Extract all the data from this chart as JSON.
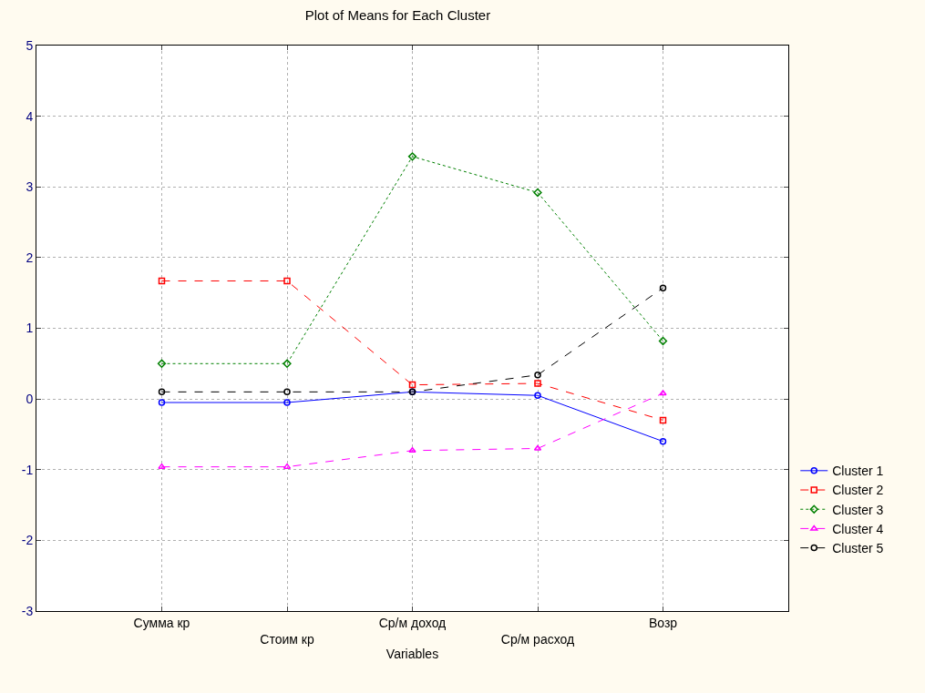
{
  "chart_data": {
    "type": "line",
    "title": "Plot of Means for Each Cluster",
    "xlabel": "Variables",
    "categories": [
      "Сумма кр",
      "Стоим кр",
      "Ср/м доход",
      "Ср/м расход",
      "Возр"
    ],
    "ylim": [
      -3,
      5
    ],
    "yticks": [
      -3,
      -2,
      -1,
      0,
      1,
      2,
      3,
      4,
      5
    ],
    "grid": true,
    "legend": "right",
    "series": [
      {
        "name": "Cluster 1",
        "color": "#0000ff",
        "marker": "circle",
        "line_style": "solid",
        "values": [
          -0.05,
          -0.05,
          0.1,
          0.05,
          -0.6
        ]
      },
      {
        "name": "Cluster 2",
        "color": "#ff0000",
        "marker": "square",
        "line_style": "dashed",
        "values": [
          1.67,
          1.67,
          0.2,
          0.22,
          -0.3
        ]
      },
      {
        "name": "Cluster 3",
        "color": "#008000",
        "marker": "diamond",
        "line_style": "dotted",
        "values": [
          0.5,
          0.5,
          3.43,
          2.92,
          0.82
        ]
      },
      {
        "name": "Cluster 4",
        "color": "#ff00ff",
        "marker": "triangle",
        "line_style": "dashed",
        "values": [
          -0.96,
          -0.96,
          -0.73,
          -0.7,
          0.08
        ]
      },
      {
        "name": "Cluster 5",
        "color": "#000000",
        "marker": "circle",
        "line_style": "dashed",
        "values": [
          0.1,
          0.1,
          0.1,
          0.34,
          1.57
        ]
      }
    ]
  }
}
